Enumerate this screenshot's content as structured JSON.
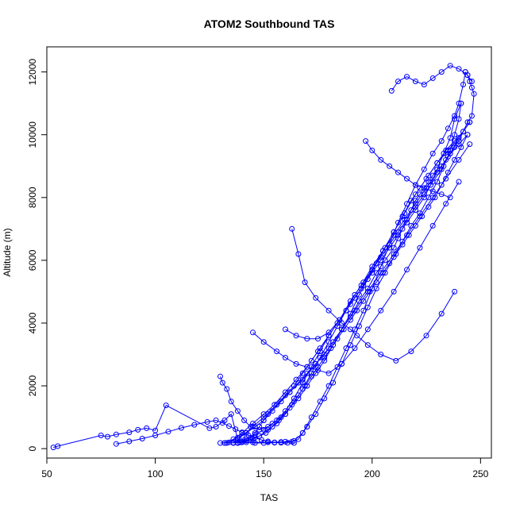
{
  "chart_data": {
    "type": "line",
    "title": "ATOM2 Southbound TAS",
    "xlabel": "TAS",
    "ylabel": "Altitude (m)",
    "xlim": [
      50,
      255
    ],
    "ylim": [
      -300,
      12800
    ],
    "x_ticks": [
      50,
      100,
      150,
      200,
      250
    ],
    "y_ticks": [
      0,
      2000,
      4000,
      6000,
      8000,
      10000,
      12000
    ],
    "grid": false,
    "color": "#0000ff",
    "marker": "open-circle",
    "series": [
      {
        "x": [
          53,
          55,
          75,
          78,
          82,
          88,
          92,
          96,
          100,
          105,
          125,
          128,
          132,
          135,
          138,
          142,
          146,
          150,
          155,
          160,
          164,
          168,
          172,
          176,
          180,
          184,
          188,
          192,
          196,
          200,
          204,
          208,
          212,
          216,
          220,
          224,
          228,
          232,
          235,
          238,
          240,
          242,
          243
        ],
        "y": [
          40,
          80,
          420,
          380,
          450,
          520,
          600,
          650,
          580,
          1380,
          650,
          700,
          900,
          1100,
          300,
          200,
          180,
          180,
          190,
          220,
          250,
          500,
          1000,
          1500,
          2000,
          2600,
          3200,
          3800,
          4400,
          5100,
          5800,
          6500,
          7200,
          7800,
          8400,
          8900,
          9400,
          9800,
          10200,
          10600,
          11000,
          11600,
          12000
        ]
      },
      {
        "x": [
          243,
          244,
          245,
          246,
          247,
          246,
          244,
          242,
          240,
          238,
          236,
          234,
          232,
          230,
          228,
          226,
          224,
          222,
          220,
          218,
          216,
          214,
          212,
          210,
          206,
          202,
          198,
          194,
          190,
          186,
          182,
          178,
          174,
          170,
          166,
          162,
          158,
          154,
          150,
          146,
          142,
          138,
          134,
          130,
          133,
          138,
          145,
          152,
          158,
          163,
          166,
          168,
          170
        ],
        "y": [
          12000,
          11900,
          11700,
          11500,
          11300,
          10600,
          10400,
          10100,
          9800,
          9600,
          9400,
          9200,
          9000,
          8900,
          8700,
          8500,
          8300,
          8100,
          7900,
          7600,
          7300,
          7000,
          6700,
          6400,
          6000,
          5600,
          5100,
          4700,
          4200,
          3800,
          3400,
          3000,
          2700,
          2400,
          2100,
          1800,
          1500,
          1200,
          900,
          700,
          500,
          350,
          200,
          180,
          180,
          190,
          200,
          200,
          210,
          220,
          300,
          500,
          700
        ]
      },
      {
        "x": [
          170,
          174,
          178,
          182,
          186,
          190,
          194,
          198,
          202,
          206,
          210,
          214,
          218,
          222,
          226,
          230,
          233,
          236,
          238,
          240,
          241
        ],
        "y": [
          700,
          1100,
          1600,
          2100,
          2700,
          3300,
          3900,
          4500,
          5100,
          5600,
          6100,
          6600,
          7100,
          7500,
          8000,
          8500,
          9000,
          9500,
          10000,
          10500,
          11000
        ]
      },
      {
        "x": [
          241,
          238,
          236,
          233,
          230,
          227,
          224,
          220,
          216,
          212,
          208,
          204,
          200,
          196,
          192,
          188,
          184,
          180,
          176,
          172,
          168,
          164,
          160,
          156,
          152,
          150,
          148,
          146,
          144,
          142,
          140,
          138
        ],
        "y": [
          11000,
          10500,
          9900,
          9400,
          8900,
          8400,
          8000,
          7600,
          7200,
          6800,
          6400,
          6000,
          5600,
          5200,
          4800,
          4400,
          4000,
          3600,
          3200,
          2800,
          2400,
          2000,
          1700,
          1400,
          1100,
          900,
          700,
          500,
          350,
          250,
          200,
          180
        ]
      },
      {
        "x": [
          138,
          142,
          146,
          150,
          154,
          158,
          162,
          166,
          170,
          174,
          178,
          182,
          186,
          190,
          194,
          198,
          202,
          206,
          210,
          214,
          218,
          222,
          226,
          230,
          234,
          238,
          242,
          245
        ],
        "y": [
          180,
          300,
          450,
          600,
          800,
          1000,
          1300,
          1600,
          2000,
          2400,
          2800,
          3300,
          3800,
          4300,
          4900,
          5400,
          5900,
          6400,
          6900,
          7400,
          7900,
          8300,
          8700,
          9100,
          9500,
          9800,
          10100,
          10400
        ]
      },
      {
        "x": [
          245,
          240,
          236,
          232,
          228,
          224,
          220,
          216,
          212,
          208,
          204,
          200,
          196,
          192,
          188,
          184,
          180,
          176,
          172,
          168,
          164,
          160,
          156,
          152,
          148,
          144,
          140,
          136,
          132
        ],
        "y": [
          10400,
          9900,
          9400,
          8900,
          8500,
          8100,
          7700,
          7300,
          6900,
          6500,
          6100,
          5700,
          5300,
          4900,
          4400,
          3900,
          3400,
          2900,
          2400,
          1900,
          1500,
          1100,
          800,
          600,
          400,
          300,
          220,
          190,
          180
        ]
      },
      {
        "x": [
          132,
          136,
          140,
          145,
          150,
          155,
          160,
          165,
          170,
          175,
          180,
          185,
          190,
          195,
          200,
          205,
          210,
          215,
          220,
          225,
          230,
          235,
          240,
          244
        ],
        "y": [
          180,
          300,
          500,
          800,
          1100,
          1400,
          1800,
          2200,
          2600,
          3100,
          3600,
          4100,
          4700,
          5200,
          5800,
          6300,
          6800,
          7300,
          7800,
          8300,
          8800,
          9300,
          9700,
          10000
        ]
      },
      {
        "x": [
          244,
          241,
          238,
          235,
          232,
          229,
          226,
          223,
          220,
          217,
          214,
          211,
          208,
          205,
          202,
          199,
          196,
          193,
          190,
          187,
          184,
          181,
          178,
          175,
          172,
          169,
          166,
          163,
          160,
          157,
          154,
          151,
          148,
          145,
          142,
          139,
          136
        ],
        "y": [
          10000,
          9600,
          9200,
          8800,
          8400,
          8000,
          7700,
          7400,
          7100,
          6800,
          6500,
          6200,
          5900,
          5600,
          5300,
          5000,
          4700,
          4400,
          4100,
          3800,
          3500,
          3200,
          2900,
          2600,
          2300,
          2000,
          1700,
          1400,
          1100,
          900,
          700,
          500,
          400,
          300,
          250,
          200,
          180
        ]
      },
      {
        "x": [
          136,
          140,
          145,
          150,
          156,
          162,
          168,
          174,
          180,
          186,
          192,
          198,
          204,
          210,
          216,
          222,
          228,
          234,
          240,
          245
        ],
        "y": [
          180,
          400,
          700,
          1000,
          1400,
          1800,
          2200,
          2700,
          3200,
          3800,
          4400,
          5000,
          5600,
          6200,
          6800,
          7400,
          8000,
          8600,
          9200,
          9700
        ]
      },
      {
        "x": [
          145,
          150,
          156,
          160,
          165,
          170,
          175,
          180,
          186,
          192,
          198,
          204,
          210,
          216,
          222,
          228,
          234,
          240
        ],
        "y": [
          3700,
          3400,
          3100,
          2900,
          2700,
          2600,
          2500,
          2400,
          2700,
          3200,
          3800,
          4400,
          5000,
          5700,
          6400,
          7100,
          7800,
          8500
        ]
      },
      {
        "x": [
          163,
          166,
          169,
          174,
          180,
          186,
          190,
          193,
          198,
          204,
          211,
          218,
          225,
          232,
          238
        ],
        "y": [
          7000,
          6200,
          5300,
          4800,
          4400,
          4000,
          3800,
          3600,
          3300,
          3000,
          2800,
          3100,
          3600,
          4300,
          5000
        ]
      },
      {
        "x": [
          197,
          200,
          204,
          208,
          212,
          216,
          220,
          224,
          228,
          232,
          236
        ],
        "y": [
          9800,
          9500,
          9200,
          9000,
          8800,
          8600,
          8400,
          8300,
          8200,
          8100,
          8000
        ]
      },
      {
        "x": [
          209,
          212,
          216,
          220,
          224,
          228,
          232,
          236,
          240,
          244,
          246
        ],
        "y": [
          11400,
          11700,
          11850,
          11700,
          11600,
          11800,
          12000,
          12200,
          12100,
          11900,
          11700
        ]
      },
      {
        "x": [
          130,
          131,
          133,
          135,
          138,
          141,
          144,
          148,
          152,
          156,
          160,
          164,
          168,
          172,
          176,
          180
        ],
        "y": [
          2300,
          2100,
          1900,
          1500,
          1200,
          900,
          700,
          600,
          700,
          900,
          1200,
          1600,
          2100,
          2600,
          3100,
          3600
        ]
      },
      {
        "x": [
          82,
          88,
          94,
          100,
          106,
          112,
          118,
          124,
          128,
          131,
          134,
          137,
          140,
          143,
          146,
          149,
          152,
          155,
          158,
          161,
          164
        ],
        "y": [
          150,
          230,
          320,
          420,
          540,
          660,
          760,
          850,
          900,
          820,
          720,
          620,
          520,
          420,
          350,
          280,
          230,
          200,
          190,
          185,
          180
        ]
      },
      {
        "x": [
          160,
          165,
          170,
          175,
          180,
          185,
          190,
          195,
          200,
          205,
          210,
          215,
          220,
          225,
          230,
          235,
          240
        ],
        "y": [
          3800,
          3600,
          3500,
          3500,
          3700,
          4100,
          4600,
          5100,
          5700,
          6300,
          6900,
          7500,
          8100,
          8600,
          9100,
          9500,
          9900
        ]
      }
    ]
  }
}
